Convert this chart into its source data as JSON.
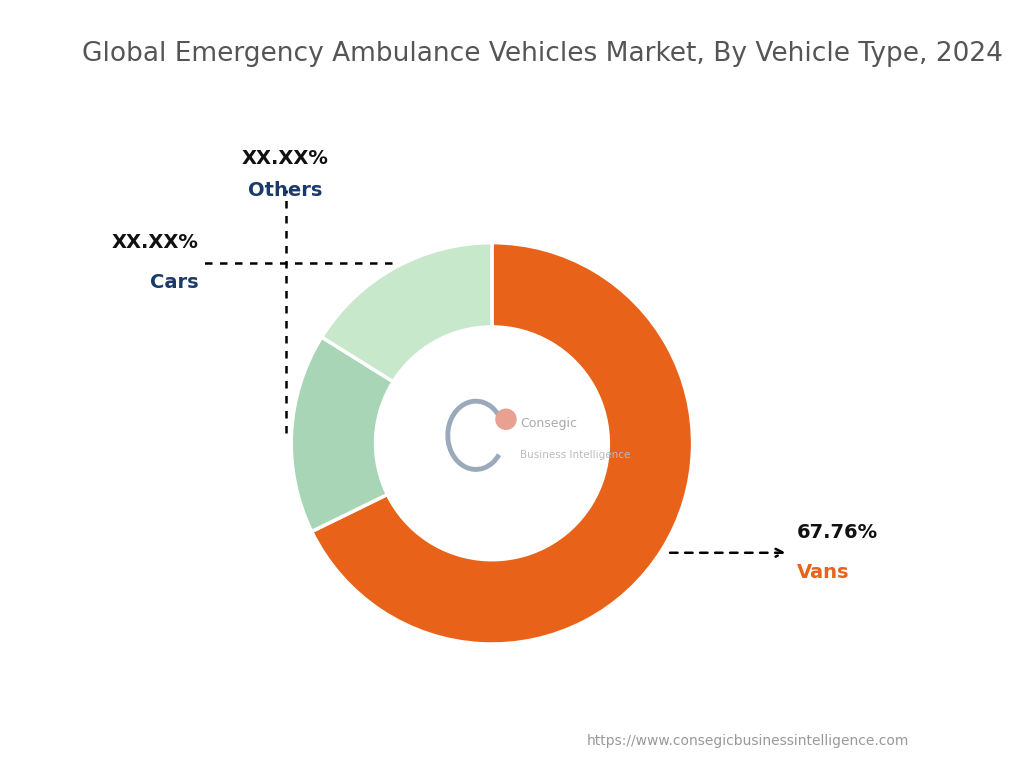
{
  "title": "Global Emergency Ambulance Vehicles Market, By Vehicle Type, 2024",
  "title_color": "#555555",
  "title_fontsize": 19,
  "segments": [
    {
      "label": "Vans",
      "value": 67.76,
      "display": "67.76%",
      "color": "#E8621A"
    },
    {
      "label": "Others",
      "value": 16.12,
      "display": "XX.XX%",
      "color": "#A8D5B5"
    },
    {
      "label": "Cars",
      "value": 16.12,
      "display": "XX.XX%",
      "color": "#C8E8CC"
    }
  ],
  "label_value_color": "#111111",
  "label_name_colors": {
    "Vans": "#E8621A",
    "Others": "#1B3A6B",
    "Cars": "#1B3A6B"
  },
  "background_color": "#FFFFFF",
  "footer_text": "https://www.consegicbusinessintelligence.com",
  "footer_color": "#999999",
  "center_b_color": "#9AAABB",
  "center_dot_color": "#E8A090",
  "center_text_color": "#BBBBBB",
  "center_name_color": "#D09080"
}
